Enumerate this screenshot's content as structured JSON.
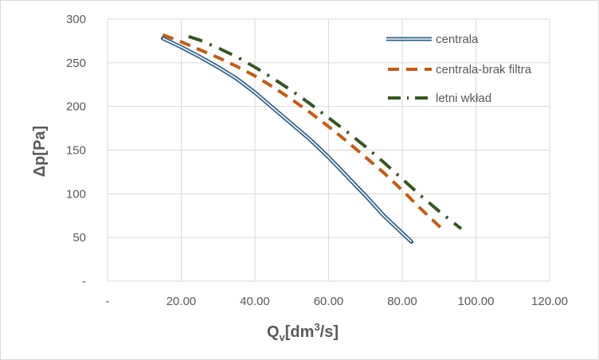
{
  "chart_data": {
    "type": "line",
    "title": "",
    "xlabel": {
      "main": "Q",
      "sub": "v",
      "unit_pre": "[dm",
      "sup": "3",
      "unit_post": "/s]"
    },
    "ylabel": "Δp[Pa]",
    "xlim": [
      0,
      120
    ],
    "ylim": [
      0,
      300
    ],
    "x_ticks": [
      0,
      20,
      40,
      60,
      80,
      100,
      120
    ],
    "x_tick_labels": [
      "-",
      "20.00",
      "40.00",
      "60.00",
      "80.00",
      "100.00",
      "120.00"
    ],
    "y_ticks": [
      0,
      50,
      100,
      150,
      200,
      250,
      300
    ],
    "y_tick_labels": [
      "-",
      "50",
      "100",
      "150",
      "200",
      "250",
      "300"
    ],
    "grid": "vertical and horizontal",
    "legend_position": "top-right",
    "series": [
      {
        "name": "centrala",
        "style": "double",
        "color": "#2e5f8a",
        "x": [
          15,
          20,
          25,
          30,
          35,
          40,
          45,
          50,
          55,
          60,
          65,
          70,
          75,
          80,
          82.5
        ],
        "y": [
          278,
          268,
          257,
          245,
          232,
          216,
          198,
          180,
          162,
          142,
          120,
          98,
          75,
          55,
          45
        ]
      },
      {
        "name": "centrala-brak filtra",
        "style": "dash",
        "color": "#c55a11",
        "x": [
          15,
          20,
          25,
          30,
          35,
          40,
          45,
          50,
          55,
          60,
          65,
          70,
          75,
          80,
          85,
          91
        ],
        "y": [
          282,
          274,
          265,
          256,
          246,
          235,
          222,
          208,
          193,
          177,
          160,
          142,
          124,
          104,
          83,
          59
        ]
      },
      {
        "name": "letni wkład",
        "style": "dash-dot",
        "color": "#375623",
        "x": [
          22,
          25,
          30,
          35,
          40,
          45,
          50,
          55,
          60,
          65,
          70,
          75,
          80,
          85,
          90,
          96
        ],
        "y": [
          280,
          276,
          267,
          257,
          245,
          232,
          218,
          203,
          187,
          171,
          154,
          136,
          117,
          98,
          80,
          60
        ]
      }
    ]
  }
}
